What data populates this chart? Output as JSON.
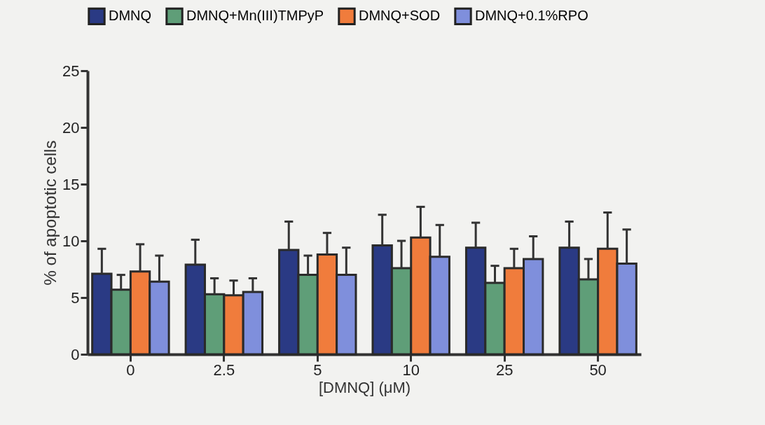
{
  "chart_data": {
    "type": "bar",
    "xlabel": "[DMNQ] (μM)",
    "ylabel": "% of apoptotic cells",
    "categories": [
      "0",
      "2.5",
      "5",
      "10",
      "25",
      "50"
    ],
    "series": [
      {
        "name": "DMNQ",
        "color": "#2a3a84",
        "values": [
          7.1,
          7.9,
          9.2,
          9.6,
          9.4,
          9.4
        ],
        "errors": [
          [
            7.1,
            9.3
          ],
          [
            7.9,
            10.1
          ],
          [
            9.2,
            11.7
          ],
          [
            9.6,
            12.3
          ],
          [
            9.4,
            11.6
          ],
          [
            9.4,
            11.7
          ]
        ]
      },
      {
        "name": "DMNQ+Mn(III)TMPyP",
        "color": "#5f9e78",
        "values": [
          5.7,
          5.3,
          7.0,
          7.6,
          6.3,
          6.6
        ],
        "errors": [
          [
            5.7,
            7.0
          ],
          [
            5.3,
            6.7
          ],
          [
            7.0,
            8.7
          ],
          [
            7.6,
            10.0
          ],
          [
            6.3,
            7.8
          ],
          [
            6.6,
            8.4
          ]
        ]
      },
      {
        "name": "DMNQ+SOD",
        "color": "#f07c3c",
        "values": [
          7.3,
          5.2,
          8.8,
          10.3,
          7.6,
          9.3
        ],
        "errors": [
          [
            7.3,
            9.7
          ],
          [
            5.2,
            6.5
          ],
          [
            8.8,
            10.7
          ],
          [
            10.3,
            13.0
          ],
          [
            7.6,
            9.3
          ],
          [
            9.3,
            12.5
          ]
        ]
      },
      {
        "name": "DMNQ+0.1%RPO",
        "color": "#7f8fdc",
        "values": [
          6.4,
          5.5,
          7.0,
          8.6,
          8.4,
          8.0
        ],
        "errors": [
          [
            6.4,
            8.7
          ],
          [
            5.5,
            6.7
          ],
          [
            7.0,
            9.4
          ],
          [
            8.6,
            11.4
          ],
          [
            8.4,
            10.4
          ],
          [
            8.0,
            11.0
          ]
        ]
      }
    ],
    "ylim": [
      0,
      25
    ],
    "yticks": [
      0,
      5,
      10,
      15,
      20,
      25
    ],
    "grid": false,
    "legend": "top"
  }
}
